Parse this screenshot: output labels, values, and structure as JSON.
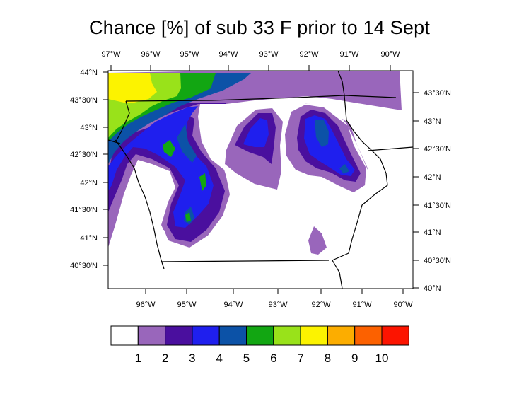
{
  "title": "Chance [%] of sub 33 F prior to 14 Sept",
  "axes": {
    "top": [
      "97°W",
      "96°W",
      "95°W",
      "94°W",
      "93°W",
      "92°W",
      "91°W",
      "90°W"
    ],
    "bottom": [
      "96°W",
      "95°W",
      "94°W",
      "93°W",
      "92°W",
      "91°W",
      "90°W"
    ],
    "left": [
      "44°N",
      "43°30'N",
      "43°N",
      "42°30'N",
      "42°N",
      "41°30'N",
      "41°N",
      "40°30'N"
    ],
    "right": [
      "43°30'N",
      "43°N",
      "42°30'N",
      "42°N",
      "41°30'N",
      "41°N",
      "40°30'N",
      "40°N"
    ]
  },
  "colorbar": {
    "labels": [
      "1",
      "2",
      "3",
      "4",
      "5",
      "6",
      "7",
      "8",
      "9",
      "10"
    ],
    "colors": [
      "#ffffff",
      "#9966bb",
      "#4a0f9e",
      "#1f1fee",
      "#0c52a7",
      "#12a612",
      "#99e21a",
      "#fcf300",
      "#fcad00",
      "#fc6100",
      "#fc1400"
    ]
  }
}
